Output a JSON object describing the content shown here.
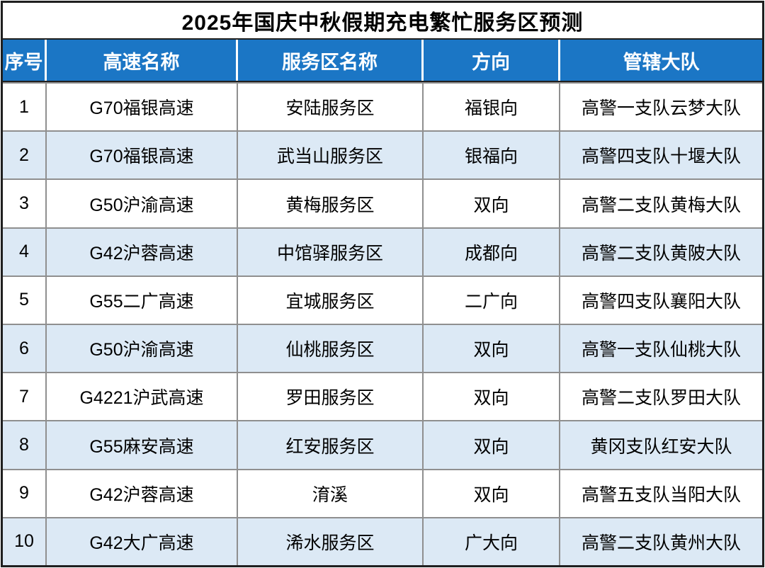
{
  "title": "2025年国庆中秋假期充电繁忙服务区预测",
  "columns": {
    "no": "序号",
    "highway": "高速名称",
    "service_area": "服务区名称",
    "direction": "方向",
    "brigade": "管辖大队"
  },
  "rows": [
    {
      "no": "1",
      "highway": "G70福银高速",
      "service_area": "安陆服务区",
      "direction": "福银向",
      "brigade": "高警一支队云梦大队"
    },
    {
      "no": "2",
      "highway": "G70福银高速",
      "service_area": "武当山服务区",
      "direction": "银福向",
      "brigade": "高警四支队十堰大队"
    },
    {
      "no": "3",
      "highway": "G50沪渝高速",
      "service_area": "黄梅服务区",
      "direction": "双向",
      "brigade": "高警二支队黄梅大队"
    },
    {
      "no": "4",
      "highway": "G42沪蓉高速",
      "service_area": "中馆驿服务区",
      "direction": "成都向",
      "brigade": "高警二支队黄陂大队"
    },
    {
      "no": "5",
      "highway": "G55二广高速",
      "service_area": "宜城服务区",
      "direction": "二广向",
      "brigade": "高警四支队襄阳大队"
    },
    {
      "no": "6",
      "highway": "G50沪渝高速",
      "service_area": "仙桃服务区",
      "direction": "双向",
      "brigade": "高警一支队仙桃大队"
    },
    {
      "no": "7",
      "highway": "G4221沪武高速",
      "service_area": "罗田服务区",
      "direction": "双向",
      "brigade": "高警二支队罗田大队"
    },
    {
      "no": "8",
      "highway": "G55麻安高速",
      "service_area": "红安服务区",
      "direction": "双向",
      "brigade": "黄冈支队红安大队"
    },
    {
      "no": "9",
      "highway": "G42沪蓉高速",
      "service_area": "淯溪",
      "direction": "双向",
      "brigade": "高警五支队当阳大队"
    },
    {
      "no": "10",
      "highway": "G42大广高速",
      "service_area": "浠水服务区",
      "direction": "广大向",
      "brigade": "高警二支队黄州大队"
    }
  ],
  "colors": {
    "header_bg": "#1b76c5",
    "alt_row_bg": "#dce9f5",
    "grid_line": "#8f8f8f",
    "dark_line": "#1f1f1f",
    "header_text": "#ffffff",
    "body_text": "#000000"
  }
}
